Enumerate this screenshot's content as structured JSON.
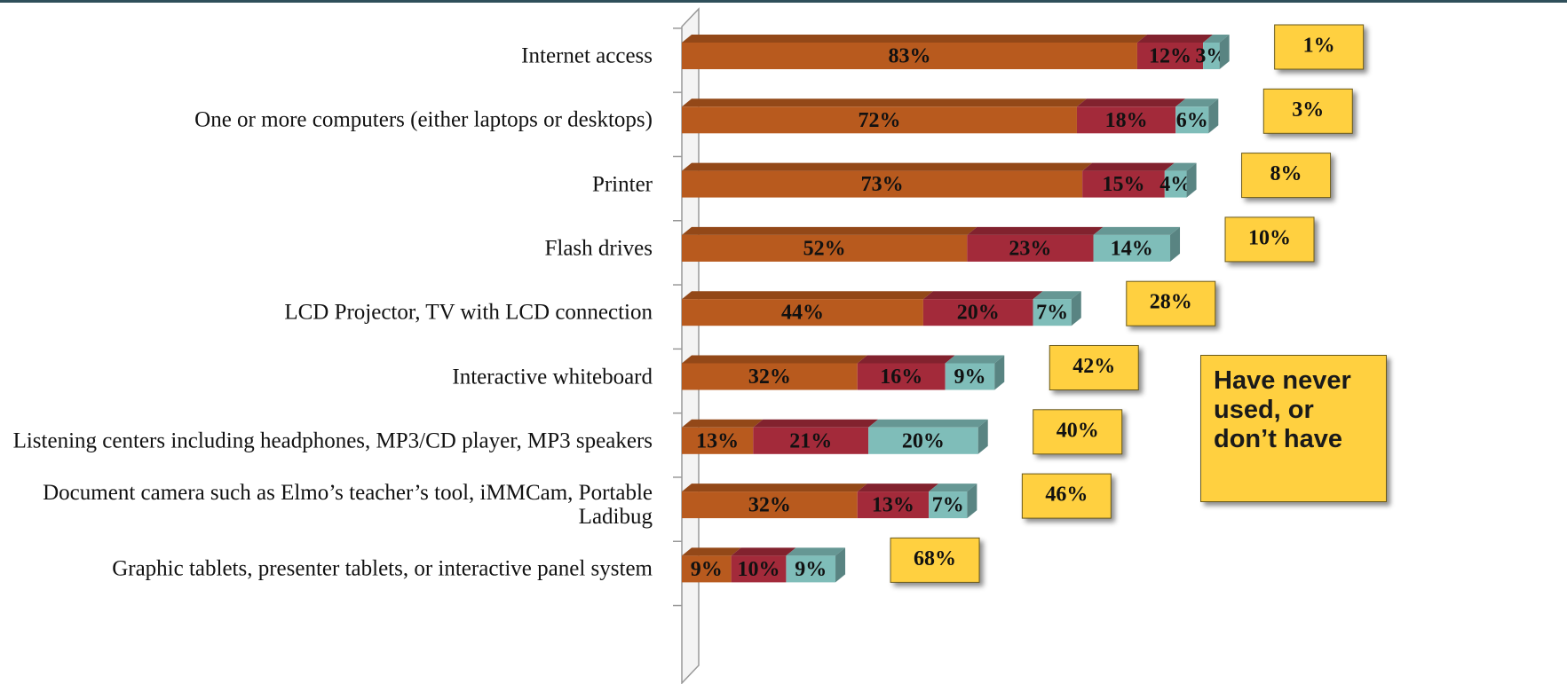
{
  "chart_data": {
    "type": "stacked-bar-horizontal",
    "categories": [
      "Internet access",
      "One or more computers (either laptops or desktops)",
      "Printer",
      "Flash drives",
      "LCD Projector, TV with LCD connection",
      "Interactive whiteboard",
      "Listening centers including headphones, MP3/CD player, MP3 speakers",
      "Document camera such as Elmo’s teacher’s tool, iMMCam, Portable Ladibug",
      "Graphic tablets, presenter tablets, or interactive panel system"
    ],
    "series": [
      {
        "color": "#b85a1e",
        "values": [
          83,
          72,
          73,
          52,
          44,
          32,
          13,
          32,
          9
        ],
        "value_labels": [
          "83%",
          "72%",
          "73%",
          "52%",
          "44%",
          "32%",
          "13%",
          "32%",
          "9%"
        ]
      },
      {
        "color": "#a32a3a",
        "values": [
          12,
          18,
          15,
          23,
          20,
          16,
          21,
          13,
          10
        ],
        "value_labels": [
          "12%",
          "18%",
          "15%",
          "23%",
          "20%",
          "16%",
          "21%",
          "13%",
          "10%"
        ]
      },
      {
        "color": "#7fbdb9",
        "values": [
          3,
          6,
          4,
          14,
          7,
          9,
          20,
          7,
          9
        ],
        "value_labels": [
          "3%",
          "6%",
          "4%",
          "14%",
          "7%",
          "9%",
          "20%",
          "7%",
          "9%"
        ]
      },
      {
        "name": "Have never used, or don’t have",
        "color": "#ffd040",
        "values": [
          1,
          3,
          8,
          10,
          28,
          42,
          40,
          46,
          68
        ],
        "value_labels": [
          "1%",
          "3%",
          "8%",
          "10%",
          "28%",
          "42%",
          "40%",
          "46%",
          "68%"
        ]
      }
    ]
  }
}
